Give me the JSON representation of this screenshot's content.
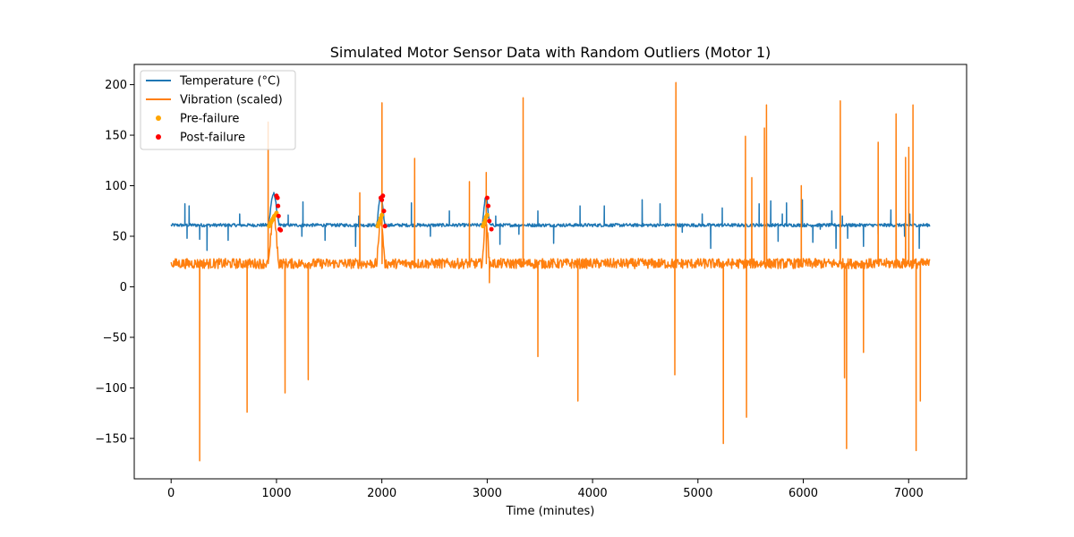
{
  "chart_data": {
    "type": "line",
    "title": "Simulated Motor Sensor Data with Random Outliers (Motor 1)",
    "xlabel": "Time (minutes)",
    "ylabel": "",
    "xlim": [
      -350,
      7550
    ],
    "ylim": [
      -190,
      220
    ],
    "x_ticks": [
      0,
      1000,
      2000,
      3000,
      4000,
      5000,
      6000,
      7000
    ],
    "y_ticks": [
      -150,
      -100,
      -50,
      0,
      50,
      100,
      150,
      200
    ],
    "grid": false,
    "legend_position": "top-left",
    "series": [
      {
        "name": "Temperature (°C)",
        "kind": "line",
        "color": "#1f77b4",
        "x_range": [
          0,
          7200
        ],
        "baseline": 61,
        "noise_amplitude": 1.6,
        "failure_events": [
          {
            "start": 920,
            "end": 1025,
            "peak": 92
          },
          {
            "start": 1950,
            "end": 2030,
            "peak": 90
          },
          {
            "start": 2950,
            "end": 3025,
            "peak": 88
          }
        ],
        "spikes": [
          {
            "x": 130,
            "y": 82
          },
          {
            "x": 150,
            "y": 48
          },
          {
            "x": 170,
            "y": 80
          },
          {
            "x": 270,
            "y": 47
          },
          {
            "x": 340,
            "y": 36
          },
          {
            "x": 540,
            "y": 46
          },
          {
            "x": 650,
            "y": 72
          },
          {
            "x": 1110,
            "y": 71
          },
          {
            "x": 1240,
            "y": 50
          },
          {
            "x": 1250,
            "y": 84
          },
          {
            "x": 1460,
            "y": 46
          },
          {
            "x": 1750,
            "y": 40
          },
          {
            "x": 1780,
            "y": 70
          },
          {
            "x": 2280,
            "y": 83
          },
          {
            "x": 2460,
            "y": 50
          },
          {
            "x": 2640,
            "y": 75
          },
          {
            "x": 3080,
            "y": 70
          },
          {
            "x": 3120,
            "y": 42
          },
          {
            "x": 3300,
            "y": 52
          },
          {
            "x": 3480,
            "y": 75
          },
          {
            "x": 3630,
            "y": 43
          },
          {
            "x": 3880,
            "y": 80
          },
          {
            "x": 4110,
            "y": 80
          },
          {
            "x": 4470,
            "y": 86
          },
          {
            "x": 4640,
            "y": 82
          },
          {
            "x": 4850,
            "y": 54
          },
          {
            "x": 5040,
            "y": 72
          },
          {
            "x": 5120,
            "y": 38
          },
          {
            "x": 5230,
            "y": 78
          },
          {
            "x": 5580,
            "y": 82
          },
          {
            "x": 5690,
            "y": 85
          },
          {
            "x": 5760,
            "y": 45
          },
          {
            "x": 5800,
            "y": 72
          },
          {
            "x": 5840,
            "y": 83
          },
          {
            "x": 5990,
            "y": 86
          },
          {
            "x": 6090,
            "y": 44
          },
          {
            "x": 6160,
            "y": 57
          },
          {
            "x": 6270,
            "y": 75
          },
          {
            "x": 6310,
            "y": 38
          },
          {
            "x": 6370,
            "y": 70
          },
          {
            "x": 6420,
            "y": 48
          },
          {
            "x": 6570,
            "y": 40
          },
          {
            "x": 6710,
            "y": 52
          },
          {
            "x": 6830,
            "y": 76
          },
          {
            "x": 6960,
            "y": 50
          },
          {
            "x": 7010,
            "y": 72
          },
          {
            "x": 7100,
            "y": 38
          }
        ]
      },
      {
        "name": "Vibration (scaled)",
        "kind": "line",
        "color": "#ff7f0e",
        "x_range": [
          0,
          7200
        ],
        "baseline": 23,
        "noise_amplitude": 5,
        "failure_events": [
          {
            "start": 920,
            "end": 1025,
            "peak": 70
          },
          {
            "start": 1950,
            "end": 2030,
            "peak": 65
          },
          {
            "start": 2950,
            "end": 3025,
            "peak": 65
          }
        ],
        "spikes": [
          {
            "x": 270,
            "y": -172
          },
          {
            "x": 720,
            "y": -124
          },
          {
            "x": 920,
            "y": 163
          },
          {
            "x": 1080,
            "y": -105
          },
          {
            "x": 1300,
            "y": -92
          },
          {
            "x": 1790,
            "y": 93
          },
          {
            "x": 2000,
            "y": 182
          },
          {
            "x": 2310,
            "y": 127
          },
          {
            "x": 2830,
            "y": 104
          },
          {
            "x": 2990,
            "y": 113
          },
          {
            "x": 3020,
            "y": 4
          },
          {
            "x": 3340,
            "y": 187
          },
          {
            "x": 3480,
            "y": -69
          },
          {
            "x": 3860,
            "y": -113
          },
          {
            "x": 4780,
            "y": -87
          },
          {
            "x": 4790,
            "y": 202
          },
          {
            "x": 5240,
            "y": -155
          },
          {
            "x": 5450,
            "y": 149
          },
          {
            "x": 5460,
            "y": -129
          },
          {
            "x": 5510,
            "y": 108
          },
          {
            "x": 5630,
            "y": 157
          },
          {
            "x": 5650,
            "y": 180
          },
          {
            "x": 5980,
            "y": 100
          },
          {
            "x": 6350,
            "y": 184
          },
          {
            "x": 6390,
            "y": -90
          },
          {
            "x": 6410,
            "y": -160
          },
          {
            "x": 6570,
            "y": -65
          },
          {
            "x": 6710,
            "y": 143
          },
          {
            "x": 6880,
            "y": 171
          },
          {
            "x": 6970,
            "y": 128
          },
          {
            "x": 7000,
            "y": 138
          },
          {
            "x": 7040,
            "y": 180
          },
          {
            "x": 7070,
            "y": -162
          },
          {
            "x": 7110,
            "y": -113
          }
        ]
      },
      {
        "name": "Pre-failure",
        "kind": "scatter",
        "color": "#ffa500",
        "points": [
          [
            930,
            60
          ],
          [
            940,
            62
          ],
          [
            950,
            64
          ],
          [
            960,
            66
          ],
          [
            970,
            68
          ],
          [
            980,
            70
          ],
          [
            990,
            71
          ],
          [
            1000,
            73
          ],
          [
            1960,
            60
          ],
          [
            1970,
            63
          ],
          [
            1980,
            65
          ],
          [
            1990,
            68
          ],
          [
            2000,
            71
          ],
          [
            2960,
            60
          ],
          [
            2970,
            63
          ],
          [
            2980,
            66
          ],
          [
            2990,
            69
          ],
          [
            3000,
            71
          ]
        ]
      },
      {
        "name": "Post-failure",
        "kind": "scatter",
        "color": "#ff0000",
        "points": [
          [
            1000,
            90
          ],
          [
            1010,
            88
          ],
          [
            1015,
            80
          ],
          [
            1020,
            70
          ],
          [
            1030,
            57
          ],
          [
            1040,
            56
          ],
          [
            1990,
            88
          ],
          [
            2000,
            86
          ],
          [
            2010,
            90
          ],
          [
            2020,
            75
          ],
          [
            2030,
            60
          ],
          [
            3000,
            88
          ],
          [
            3010,
            80
          ],
          [
            3020,
            65
          ],
          [
            3040,
            57
          ]
        ]
      }
    ]
  }
}
